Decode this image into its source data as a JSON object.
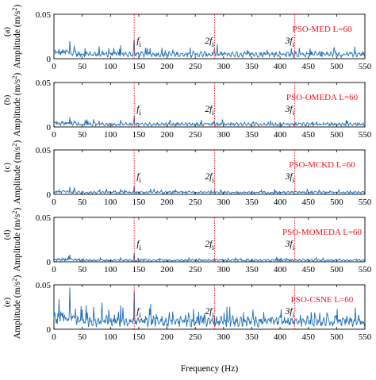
{
  "figure": {
    "xlabel": "Frequency (Hz)",
    "ylabel_prefix": "Amplitude (m/s",
    "ylabel_exp": "2",
    "ylabel_suffix": ")",
    "colors": {
      "signal": "#1f6fb5",
      "marker": "#e8141e",
      "axis": "#000000",
      "label": "#e8141e"
    }
  },
  "chart_data": [
    {
      "type": "line",
      "panel": "(a)",
      "method": "PSO-MED L=60",
      "xlim": [
        0,
        550
      ],
      "ylim": [
        0,
        0.05
      ],
      "xticks": [
        "0",
        "50",
        "100",
        "150",
        "200",
        "250",
        "300",
        "350",
        "400",
        "450",
        "500",
        "550"
      ],
      "yticks": [
        "0",
        "0.05"
      ],
      "markers": [
        {
          "x": 142,
          "label": "f",
          "sub": "i"
        },
        {
          "x": 284,
          "label": "2f",
          "sub": "i"
        },
        {
          "x": 426,
          "label": "3f",
          "sub": "i"
        }
      ],
      "noise_level": 0.005,
      "peaks": [
        [
          28,
          0.02
        ],
        [
          55,
          0.012
        ],
        [
          80,
          0.014
        ],
        [
          97,
          0.012
        ],
        [
          118,
          0.015
        ],
        [
          142,
          0.022
        ],
        [
          210,
          0.01
        ],
        [
          284,
          0.011
        ],
        [
          426,
          0.009
        ]
      ]
    },
    {
      "type": "line",
      "panel": "(b)",
      "method": "PSO-OMEDA L=60",
      "xlim": [
        0,
        550
      ],
      "ylim": [
        0,
        0.05
      ],
      "xticks": [
        "0",
        "50",
        "100",
        "150",
        "200",
        "250",
        "300",
        "350",
        "400",
        "450",
        "500",
        "550"
      ],
      "yticks": [
        "0",
        "0.05"
      ],
      "markers": [
        {
          "x": 142,
          "label": "f",
          "sub": "i"
        },
        {
          "x": 284,
          "label": "2f",
          "sub": "i"
        },
        {
          "x": 426,
          "label": "3f",
          "sub": "i"
        }
      ],
      "noise_level": 0.003,
      "peaks": [
        [
          28,
          0.011
        ],
        [
          55,
          0.007
        ],
        [
          80,
          0.007
        ],
        [
          118,
          0.008
        ],
        [
          142,
          0.013
        ],
        [
          284,
          0.006
        ],
        [
          426,
          0.005
        ]
      ]
    },
    {
      "type": "line",
      "panel": "(c)",
      "method": "PSO-MCKD L=60",
      "xlim": [
        0,
        550
      ],
      "ylim": [
        0,
        0.05
      ],
      "xticks": [
        "0",
        "50",
        "100",
        "150",
        "200",
        "250",
        "300",
        "350",
        "400",
        "450",
        "500",
        "550"
      ],
      "yticks": [
        "0",
        "0.05"
      ],
      "markers": [
        {
          "x": 142,
          "label": "f",
          "sub": "i"
        },
        {
          "x": 284,
          "label": "2f",
          "sub": "i"
        },
        {
          "x": 426,
          "label": "3f",
          "sub": "i"
        }
      ],
      "noise_level": 0.0022,
      "peaks": [
        [
          28,
          0.008
        ],
        [
          118,
          0.006
        ],
        [
          142,
          0.01
        ],
        [
          284,
          0.005
        ],
        [
          426,
          0.004
        ]
      ]
    },
    {
      "type": "line",
      "panel": "(d)",
      "method": "PSO-MOMEDA L=60",
      "xlim": [
        0,
        550
      ],
      "ylim": [
        0,
        0.05
      ],
      "xticks": [
        "0",
        "50",
        "100",
        "150",
        "200",
        "250",
        "300",
        "350",
        "400",
        "450",
        "500",
        "550"
      ],
      "yticks": [
        "0",
        "0.05"
      ],
      "markers": [
        {
          "x": 142,
          "label": "f",
          "sub": "i"
        },
        {
          "x": 284,
          "label": "2f",
          "sub": "i"
        },
        {
          "x": 426,
          "label": "3f",
          "sub": "i"
        }
      ],
      "noise_level": 0.0018,
      "peaks": [
        [
          28,
          0.008
        ],
        [
          118,
          0.005
        ],
        [
          142,
          0.01
        ],
        [
          284,
          0.004
        ],
        [
          426,
          0.003
        ]
      ]
    },
    {
      "type": "line",
      "panel": "(e)",
      "method": "PSO-CSNE L=60",
      "xlim": [
        0,
        550
      ],
      "ylim": [
        0,
        0.05
      ],
      "xticks": [
        "0",
        "50",
        "100",
        "150",
        "200",
        "250",
        "300",
        "350",
        "400",
        "450",
        "500",
        "550"
      ],
      "yticks": [
        "0",
        "0.05"
      ],
      "markers": [
        {
          "x": 142,
          "label": "f",
          "sub": "i"
        },
        {
          "x": 284,
          "label": "2f",
          "sub": "i"
        },
        {
          "x": 426,
          "label": "3f",
          "sub": "i"
        }
      ],
      "noise_level": 0.009,
      "peaks": [
        [
          12,
          0.02
        ],
        [
          28,
          0.047
        ],
        [
          48,
          0.026
        ],
        [
          70,
          0.025
        ],
        [
          85,
          0.03
        ],
        [
          97,
          0.022
        ],
        [
          118,
          0.027
        ],
        [
          142,
          0.044
        ],
        [
          170,
          0.016
        ],
        [
          210,
          0.02
        ],
        [
          284,
          0.015
        ],
        [
          426,
          0.01
        ]
      ]
    }
  ]
}
